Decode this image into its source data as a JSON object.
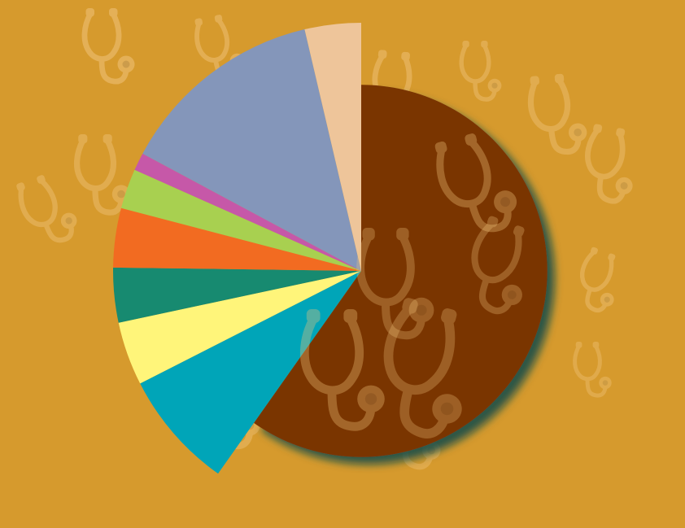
{
  "background_color": "#D69A2D",
  "decoration": {
    "motif": "stethoscope-icon",
    "color": "#F0C27A"
  },
  "chart_data": {
    "type": "pie",
    "title": "",
    "legend": "none",
    "data_labels": "none",
    "style": "exploded-radius",
    "slices": [
      {
        "value": 62.0,
        "color": "#7A3600",
        "radius_scale": 0.75
      },
      {
        "value": 8.0,
        "color": "#00A5B8",
        "radius_scale": 1.0
      },
      {
        "value": 4.3,
        "color": "#FFF57A",
        "radius_scale": 1.0
      },
      {
        "value": 3.7,
        "color": "#178A70",
        "radius_scale": 1.0
      },
      {
        "value": 4.0,
        "color": "#F26B21",
        "radius_scale": 1.0
      },
      {
        "value": 2.7,
        "color": "#A8D050",
        "radius_scale": 1.0
      },
      {
        "value": 1.2,
        "color": "#C658A8",
        "radius_scale": 1.0
      },
      {
        "value": 14.0,
        "color": "#8496BA",
        "radius_scale": 1.0
      },
      {
        "value": 3.8,
        "color": "#EEC59A",
        "radius_scale": 1.0
      }
    ]
  }
}
